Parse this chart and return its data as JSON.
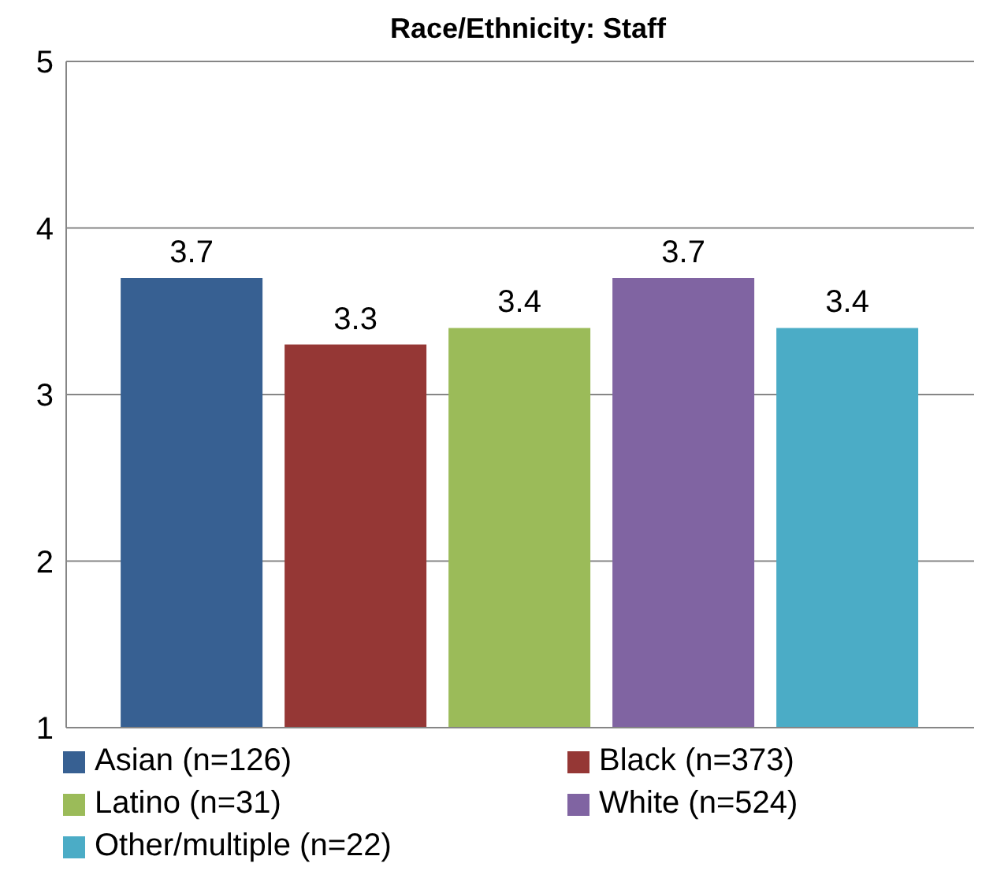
{
  "chart_data": {
    "type": "bar",
    "title": "Race/Ethnicity: Staff",
    "categories": [
      null
    ],
    "series": [
      {
        "name": "Asian (n=126)",
        "color": "#376092",
        "values": [
          3.7
        ]
      },
      {
        "name": "Black (n=373)",
        "color": "#953735",
        "values": [
          3.3
        ]
      },
      {
        "name": "Latino (n=31)",
        "color": "#9bbb59",
        "values": [
          3.4
        ]
      },
      {
        "name": "White (n=524)",
        "color": "#8064a2",
        "values": [
          3.7
        ]
      },
      {
        "name": "Other/multiple (n=22)",
        "color": "#4bacc6",
        "values": [
          3.4
        ]
      }
    ],
    "ylim": [
      1,
      5
    ],
    "yticks": [
      1,
      2,
      3,
      4,
      5
    ],
    "grid": "y",
    "legend": "bottom",
    "data_labels": true
  }
}
